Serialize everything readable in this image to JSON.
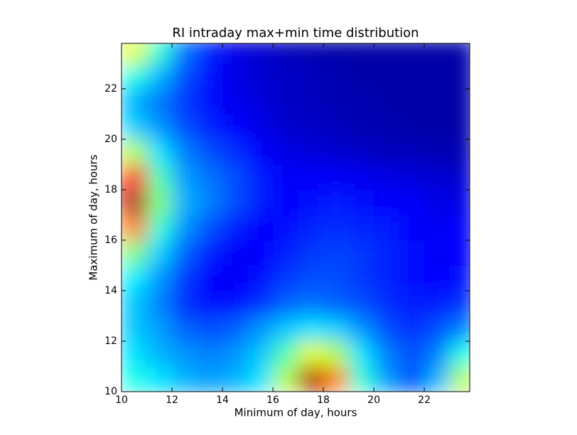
{
  "chart_data": {
    "type": "heatmap",
    "title": "RI intraday max+min time distribution",
    "xlabel": "Minimum of day, hours",
    "ylabel": "Maximum of day, hours",
    "cmap": "jet",
    "xbins": [
      10,
      11,
      12,
      13,
      14,
      15,
      16,
      17,
      18,
      19,
      20,
      21,
      22,
      23,
      24
    ],
    "ybins": [
      10,
      11,
      12,
      13,
      14,
      15,
      16,
      17,
      18,
      19,
      20,
      21,
      22,
      23,
      24
    ],
    "z": [
      [
        0.4,
        0.35,
        0.3,
        0.28,
        0.3,
        0.35,
        0.55,
        0.95,
        0.75,
        0.42,
        0.28,
        0.2,
        0.3,
        0.55
      ],
      [
        0.35,
        0.3,
        0.27,
        0.25,
        0.27,
        0.32,
        0.45,
        0.6,
        0.55,
        0.35,
        0.25,
        0.2,
        0.25,
        0.4
      ],
      [
        0.32,
        0.28,
        0.22,
        0.2,
        0.22,
        0.27,
        0.32,
        0.35,
        0.33,
        0.27,
        0.2,
        0.17,
        0.2,
        0.25
      ],
      [
        0.32,
        0.25,
        0.17,
        0.14,
        0.14,
        0.17,
        0.22,
        0.24,
        0.22,
        0.2,
        0.17,
        0.15,
        0.15,
        0.17
      ],
      [
        0.36,
        0.27,
        0.18,
        0.13,
        0.12,
        0.14,
        0.18,
        0.2,
        0.2,
        0.18,
        0.16,
        0.14,
        0.13,
        0.14
      ],
      [
        0.5,
        0.33,
        0.22,
        0.15,
        0.12,
        0.13,
        0.15,
        0.18,
        0.19,
        0.18,
        0.16,
        0.14,
        0.12,
        0.13
      ],
      [
        0.75,
        0.42,
        0.27,
        0.2,
        0.15,
        0.13,
        0.14,
        0.16,
        0.17,
        0.16,
        0.15,
        0.13,
        0.12,
        0.12
      ],
      [
        0.95,
        0.5,
        0.3,
        0.25,
        0.2,
        0.15,
        0.13,
        0.14,
        0.15,
        0.14,
        0.13,
        0.12,
        0.1,
        0.1
      ],
      [
        0.85,
        0.45,
        0.28,
        0.24,
        0.2,
        0.15,
        0.12,
        0.12,
        0.12,
        0.11,
        0.1,
        0.09,
        0.08,
        0.08
      ],
      [
        0.55,
        0.35,
        0.25,
        0.2,
        0.17,
        0.13,
        0.1,
        0.09,
        0.08,
        0.07,
        0.06,
        0.06,
        0.05,
        0.05
      ],
      [
        0.33,
        0.27,
        0.2,
        0.16,
        0.13,
        0.1,
        0.08,
        0.07,
        0.06,
        0.05,
        0.05,
        0.04,
        0.04,
        0.04
      ],
      [
        0.3,
        0.24,
        0.18,
        0.14,
        0.11,
        0.09,
        0.07,
        0.06,
        0.05,
        0.05,
        0.04,
        0.04,
        0.04,
        0.04
      ],
      [
        0.4,
        0.3,
        0.2,
        0.14,
        0.1,
        0.08,
        0.07,
        0.06,
        0.05,
        0.04,
        0.04,
        0.04,
        0.04,
        0.04
      ],
      [
        0.6,
        0.42,
        0.24,
        0.15,
        0.1,
        0.08,
        0.06,
        0.05,
        0.04,
        0.04,
        0.04,
        0.04,
        0.04,
        0.04
      ]
    ],
    "xlim": [
      10,
      23.8
    ],
    "ylim": [
      10,
      23.8
    ],
    "xticks": [
      10,
      12,
      14,
      16,
      18,
      20,
      22
    ],
    "yticks": [
      10,
      12,
      14,
      16,
      18,
      20,
      22
    ]
  }
}
